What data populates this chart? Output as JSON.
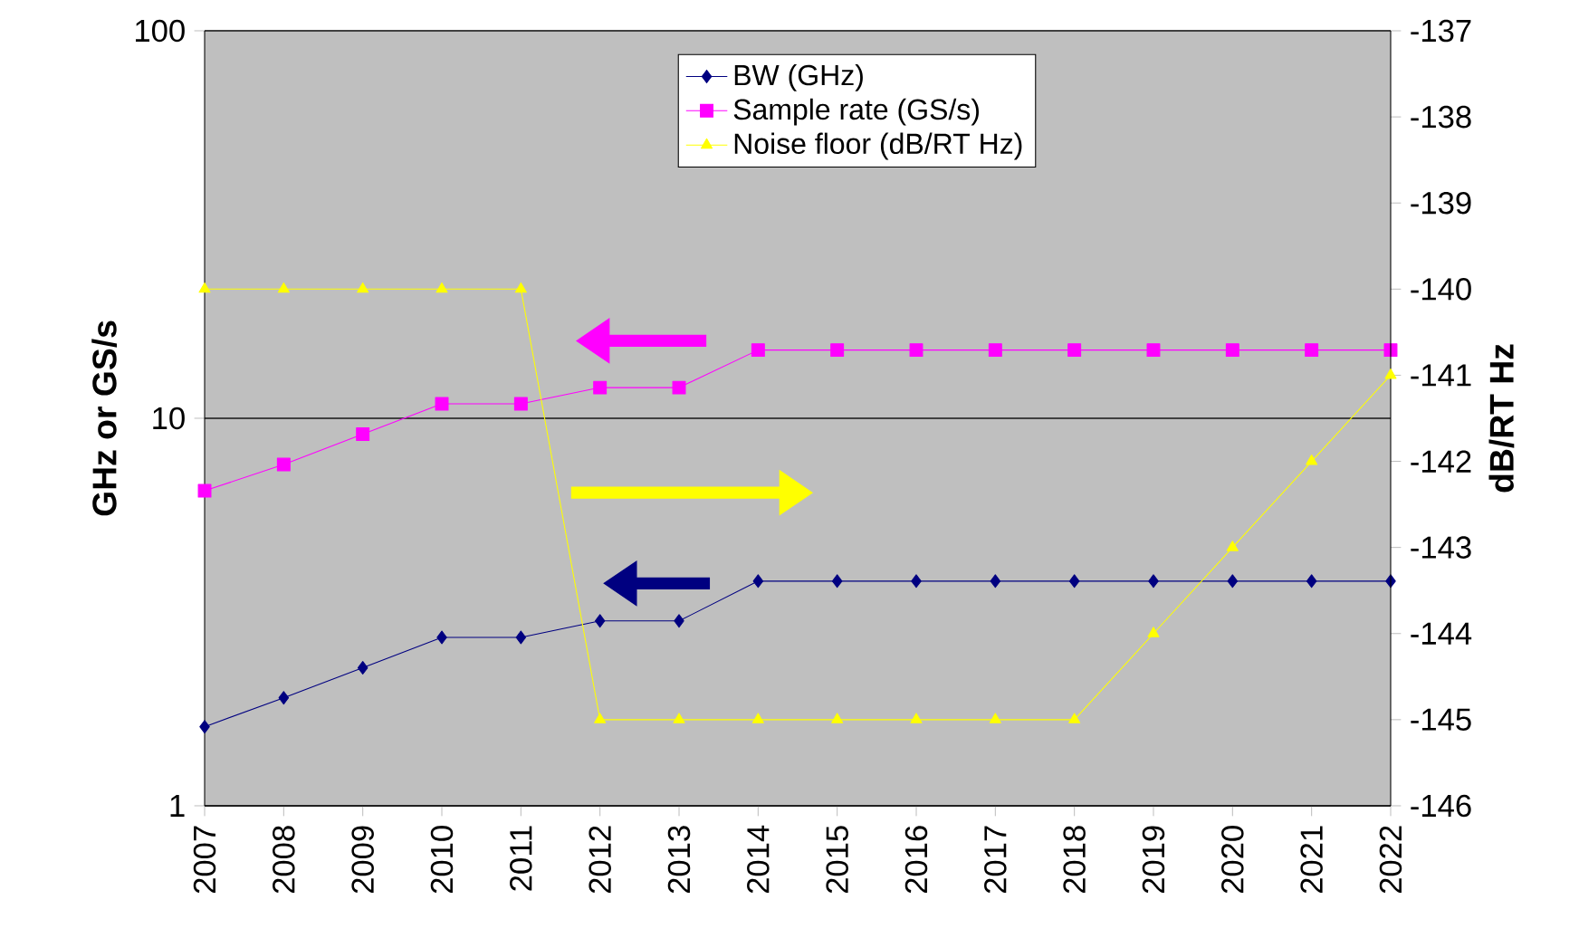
{
  "chart_data": {
    "type": "line",
    "ylabel": "GHz or GS/s",
    "y2label": "dB/RT Hz",
    "categories": [
      "2007",
      "2008",
      "2009",
      "2010",
      "2011",
      "2012",
      "2013",
      "2014",
      "2015",
      "2016",
      "2017",
      "2018",
      "2019",
      "2020",
      "2021",
      "2022"
    ],
    "series": [
      {
        "name": "BW (GHz)",
        "color": "#000080",
        "marker": "diamond",
        "values": [
          1.6,
          1.9,
          2.27,
          2.72,
          2.72,
          3.0,
          3.0,
          3.8,
          3.8,
          3.8,
          3.8,
          3.8,
          3.8,
          3.8,
          3.8,
          3.8
        ]
      },
      {
        "name": "Sample rate (GS/s)",
        "color": "#ff00ff",
        "marker": "square",
        "values": [
          6.5,
          7.6,
          9.1,
          10.9,
          10.9,
          12,
          12,
          15,
          15,
          15,
          15,
          15,
          15,
          15,
          15,
          15
        ]
      },
      {
        "name": "Noise floor (dB/RT Hz)",
        "color": "#ffff00",
        "marker": "triangle",
        "axis": "y2",
        "values": [
          -140,
          -140,
          -140,
          -140,
          -140,
          -145,
          -145,
          -145,
          -145,
          -145,
          -145,
          -145,
          -144,
          -143,
          -142,
          -141
        ]
      }
    ],
    "log": "y",
    "ylim": [
      1,
      100
    ],
    "yticks": [
      1,
      10,
      100
    ],
    "y2lim": [
      -146,
      -137
    ],
    "y2ticks": [
      -146,
      -145,
      -144,
      -143,
      -142,
      -141,
      -140,
      -139,
      -138,
      -137
    ],
    "grid": "y",
    "legend": "top",
    "line_style": "solid"
  }
}
